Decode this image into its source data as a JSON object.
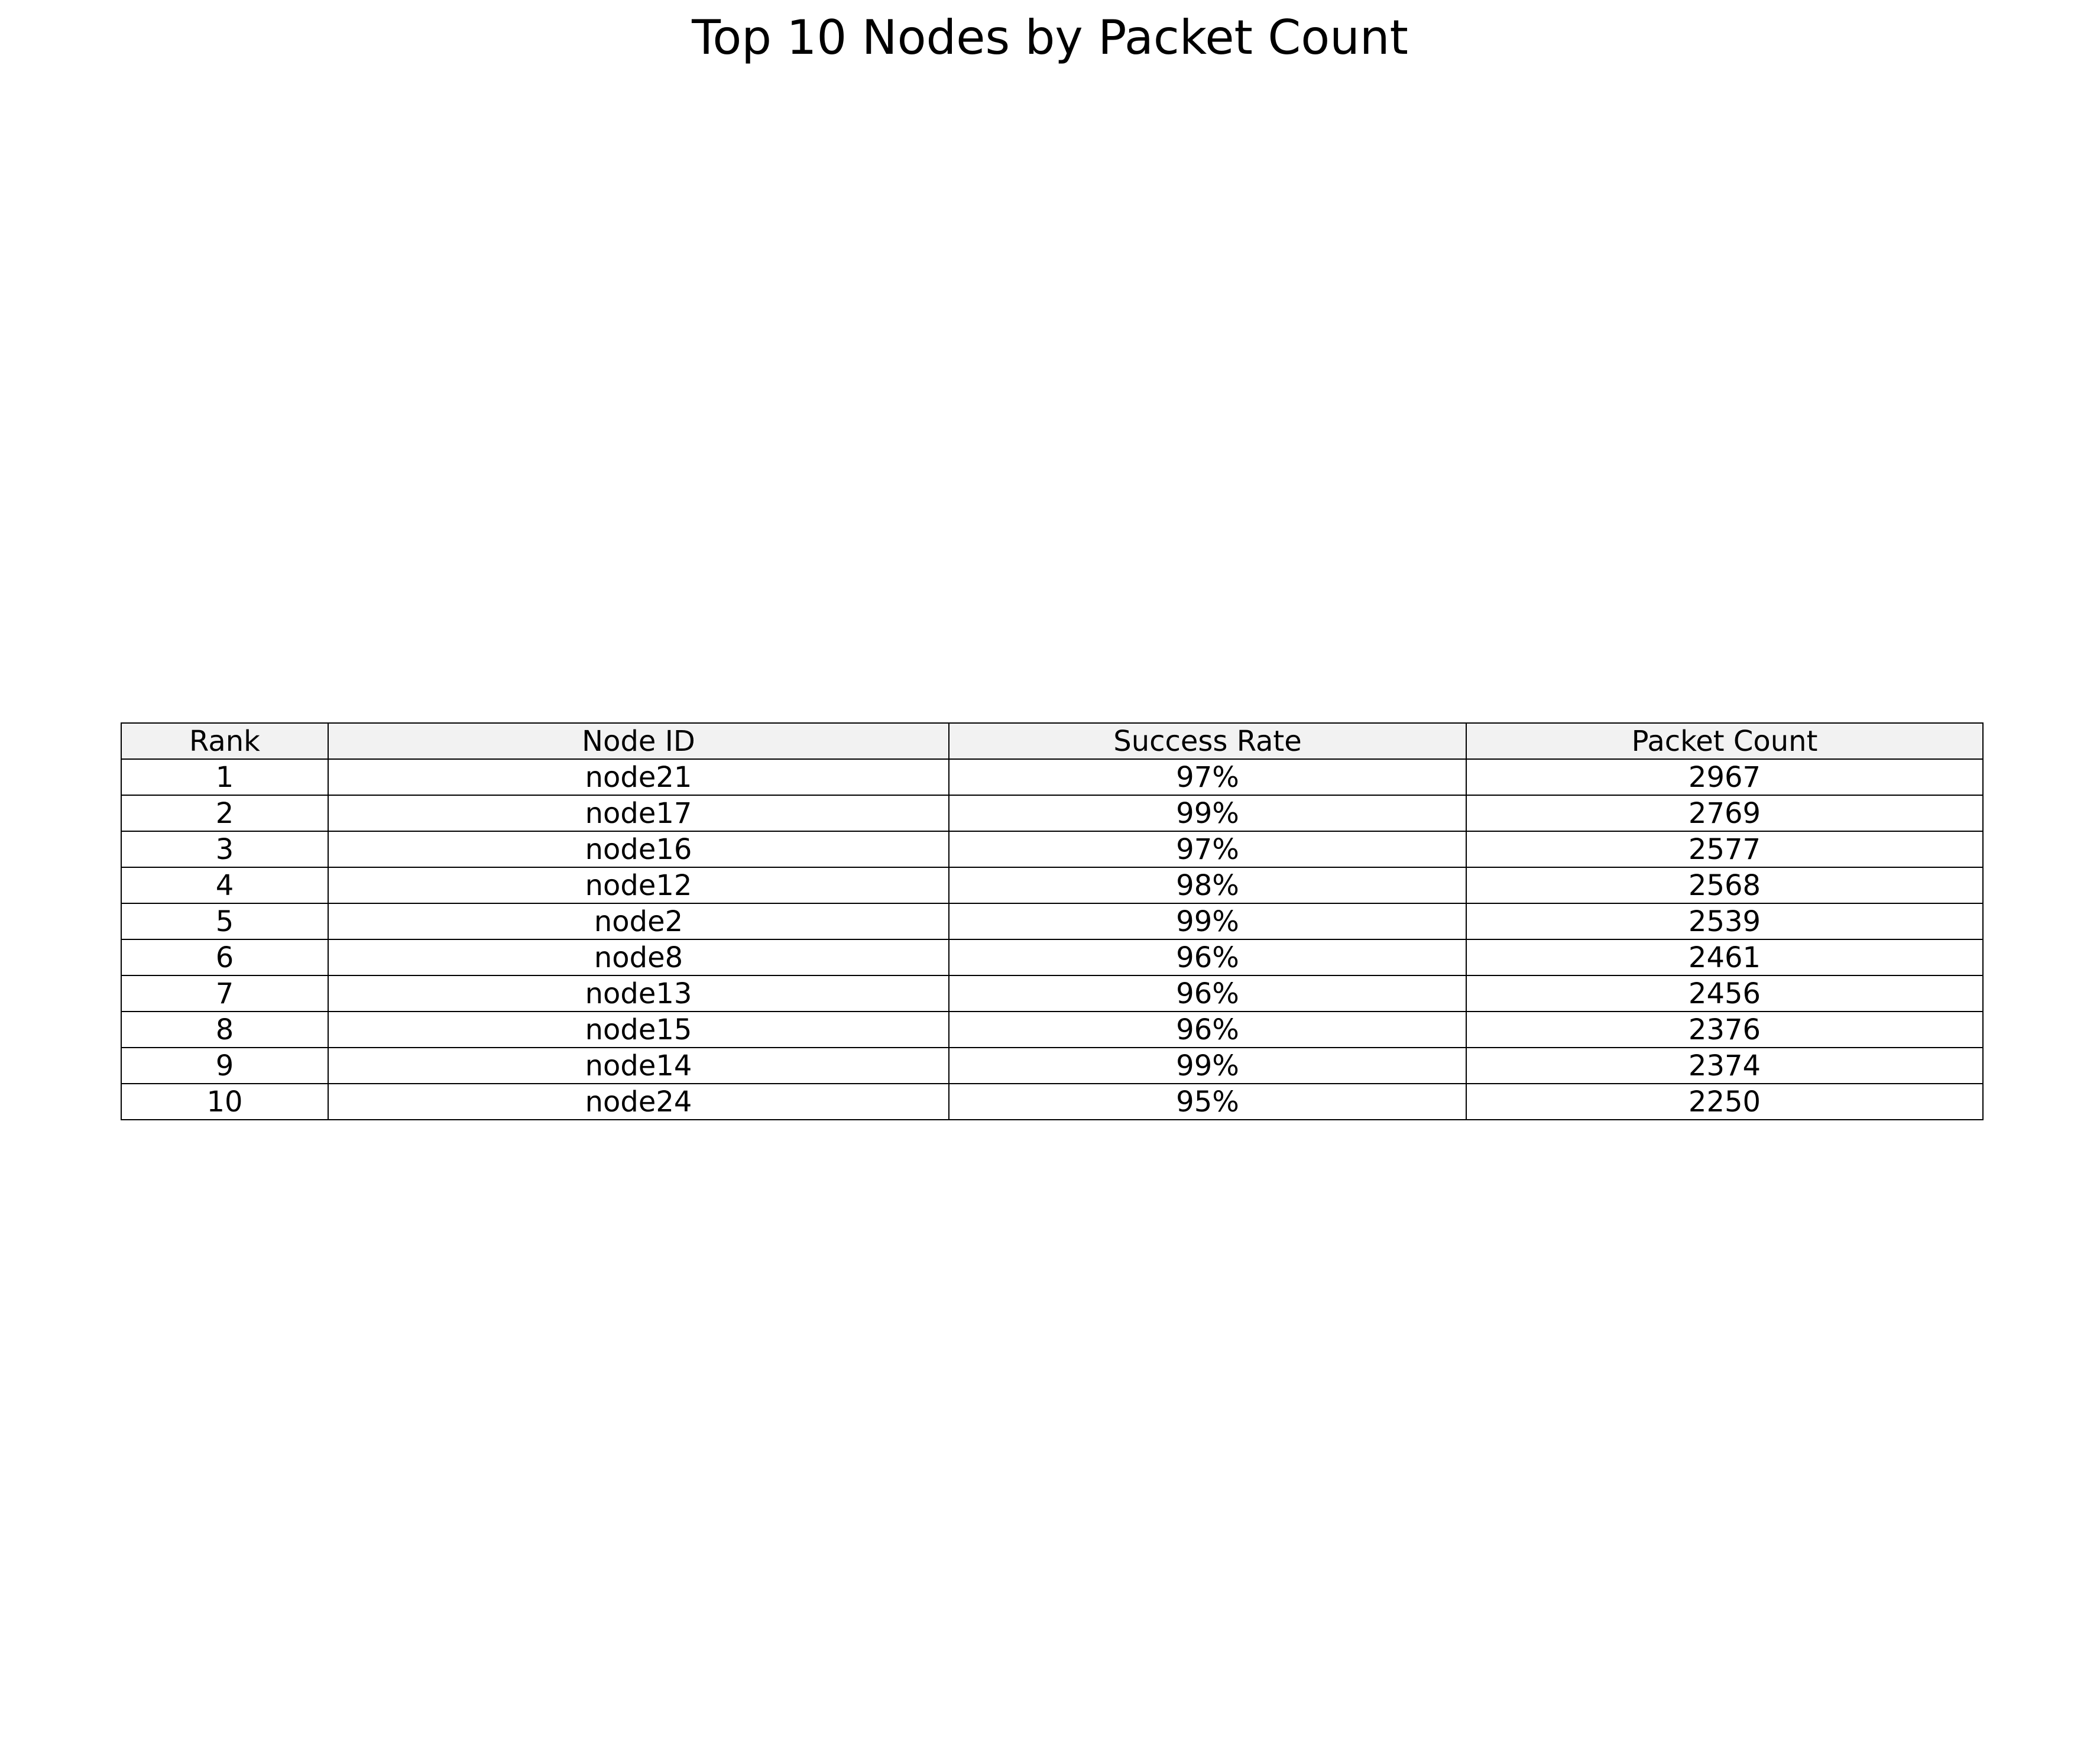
{
  "chart_data": {
    "type": "table",
    "title": "Top 10 Nodes by Packet Count",
    "columns": [
      "Rank",
      "Node ID",
      "Success Rate",
      "Packet Count"
    ],
    "rows": [
      [
        "1",
        "node21",
        "97%",
        "2967"
      ],
      [
        "2",
        "node17",
        "99%",
        "2769"
      ],
      [
        "3",
        "node16",
        "97%",
        "2577"
      ],
      [
        "4",
        "node12",
        "98%",
        "2568"
      ],
      [
        "5",
        "node2",
        "99%",
        "2539"
      ],
      [
        "6",
        "node8",
        "96%",
        "2461"
      ],
      [
        "7",
        "node13",
        "96%",
        "2456"
      ],
      [
        "8",
        "node15",
        "96%",
        "2376"
      ],
      [
        "9",
        "node14",
        "99%",
        "2374"
      ],
      [
        "10",
        "node24",
        "95%",
        "2250"
      ]
    ],
    "header_color": "#f2f2f2"
  }
}
